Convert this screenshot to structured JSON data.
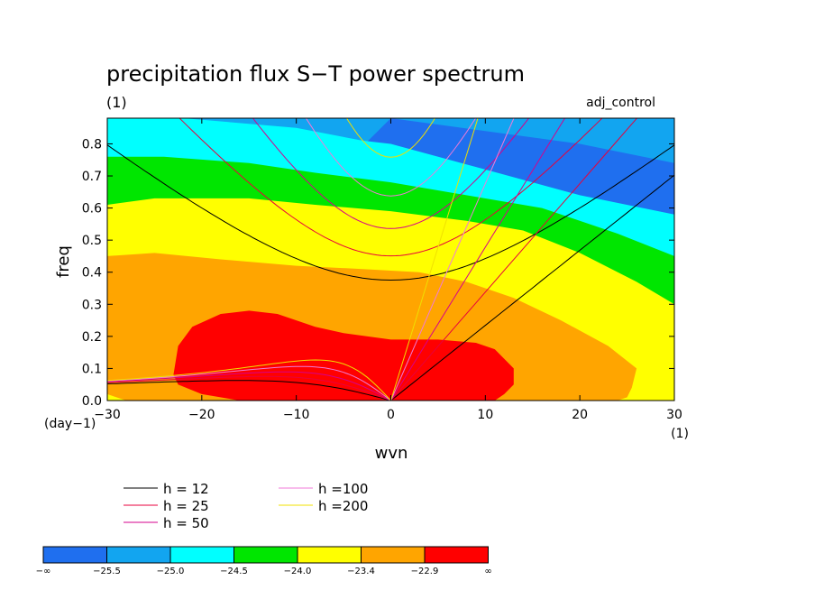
{
  "chart_data": {
    "type": "heatmap",
    "title": "precipitation flux S−T power spectrum",
    "units_label": "(1)",
    "experiment_label": "adj_control",
    "xlabel": "wvn",
    "ylabel": "freq",
    "y_unit_label": "(day−1)",
    "x_unit_label": "(1)",
    "xlim": [
      -30,
      30
    ],
    "ylim": [
      0,
      0.88
    ],
    "x_ticks": [
      -30,
      -20,
      -10,
      0,
      10,
      20,
      30
    ],
    "x_tick_labels": [
      "−30",
      "−20",
      "−10",
      "0",
      "10",
      "20",
      "30"
    ],
    "y_ticks": [
      0.0,
      0.1,
      0.2,
      0.3,
      0.4,
      0.5,
      0.6,
      0.7,
      0.8
    ],
    "y_tick_labels": [
      "0.0",
      "0.1",
      "0.2",
      "0.3",
      "0.4",
      "0.5",
      "0.6",
      "0.7",
      "0.8"
    ],
    "colorbar": {
      "levels": [
        "−∞",
        "−25.5",
        "−25.0",
        "−24.5",
        "−24.0",
        "−23.4",
        "−22.9",
        "∞"
      ],
      "colors": [
        "#1f6fef",
        "#12a5f0",
        "#00ffff",
        "#00e600",
        "#ffff00",
        "#ffa500",
        "#ff0000"
      ]
    },
    "dispersion_curves": [
      {
        "name": "h = 12",
        "h": 12,
        "color": "#000000"
      },
      {
        "name": "h = 25",
        "h": 25,
        "color": "#e8003c"
      },
      {
        "name": "h = 50",
        "h": 50,
        "color": "#d6008c"
      },
      {
        "name": "h =100",
        "h": 100,
        "color": "#f07ad8"
      },
      {
        "name": "h =200",
        "h": 200,
        "color": "#f0e000"
      }
    ],
    "grid": false,
    "legend_placement": "below plot"
  }
}
